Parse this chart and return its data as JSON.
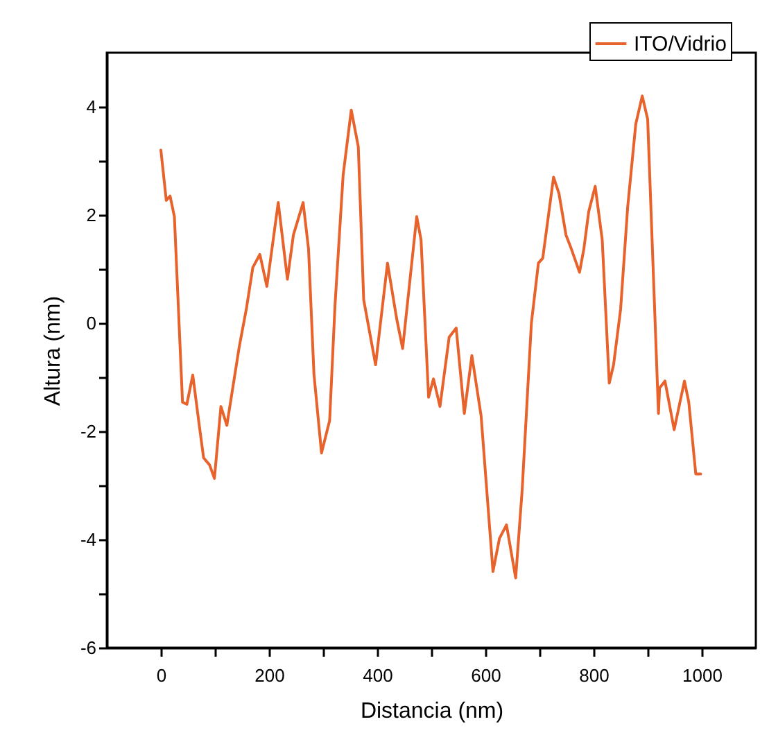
{
  "chart_data": {
    "type": "line",
    "xlabel": "Distancia (nm)",
    "ylabel": "Altura (nm)",
    "xlim": [
      -100,
      1100
    ],
    "ylim": [
      -6,
      5
    ],
    "xticks": [
      0,
      {
        "value": 100,
        "label": null
      },
      200,
      {
        "value": 300,
        "label": null
      },
      400,
      {
        "value": 500,
        "label": null
      },
      600,
      {
        "value": 700,
        "label": null
      },
      800,
      {
        "value": 900,
        "label": null
      },
      1000
    ],
    "yticks": [
      -6,
      {
        "value": -5,
        "label": null
      },
      -4,
      {
        "value": -3,
        "label": null
      },
      -2,
      {
        "value": -1,
        "label": null
      },
      0,
      {
        "value": 1,
        "label": null
      },
      2,
      {
        "value": 3,
        "label": null
      },
      4
    ],
    "grid": false,
    "legend": "top right",
    "marker": "none",
    "line_style": "solid",
    "series": [
      {
        "name": "ITO/Vidrio",
        "color": "#e8622c",
        "x": [
          0,
          10,
          17,
          25,
          40,
          48,
          59,
          71,
          79,
          90,
          99,
          111,
          122,
          145,
          158,
          170,
          183,
          196,
          217,
          234,
          245,
          263,
          273,
          283,
          297,
          312,
          322,
          337,
          352,
          365,
          375,
          397,
          419,
          436,
          447,
          473,
          481,
          495,
          504,
          516,
          533,
          546,
          561,
          575,
          592,
          614,
          626,
          639,
          656,
          668,
          685,
          698,
          706,
          726,
          736,
          749,
          759,
          774,
          782,
          791,
          803,
          816,
          829,
          837,
          850,
          863,
          878,
          890,
          900,
          920,
          922,
          932,
          949,
          968,
          976,
          989,
          998
        ],
        "values": [
          3.2,
          2.27,
          2.35,
          1.97,
          -1.46,
          -1.5,
          -0.96,
          -1.89,
          -2.49,
          -2.62,
          -2.87,
          -1.54,
          -1.89,
          -0.43,
          0.26,
          1.03,
          1.27,
          0.68,
          2.23,
          0.81,
          1.63,
          2.23,
          1.37,
          -0.94,
          -2.4,
          -1.8,
          0.34,
          2.74,
          3.94,
          3.26,
          0.43,
          -0.77,
          1.11,
          0.08,
          -0.47,
          1.97,
          1.54,
          -1.37,
          -1.03,
          -1.54,
          -0.26,
          -0.09,
          -1.67,
          -0.6,
          -1.71,
          -4.59,
          -3.98,
          -3.73,
          -4.71,
          -3.08,
          0,
          1.11,
          1.2,
          2.7,
          2.4,
          1.63,
          1.37,
          0.94,
          1.37,
          2.06,
          2.53,
          1.54,
          -1.11,
          -0.77,
          0.26,
          2.14,
          3.68,
          4.2,
          3.77,
          -1.67,
          -1.2,
          -1.07,
          -1.97,
          -1.07,
          -1.46,
          -2.79,
          -2.79
        ]
      }
    ]
  }
}
